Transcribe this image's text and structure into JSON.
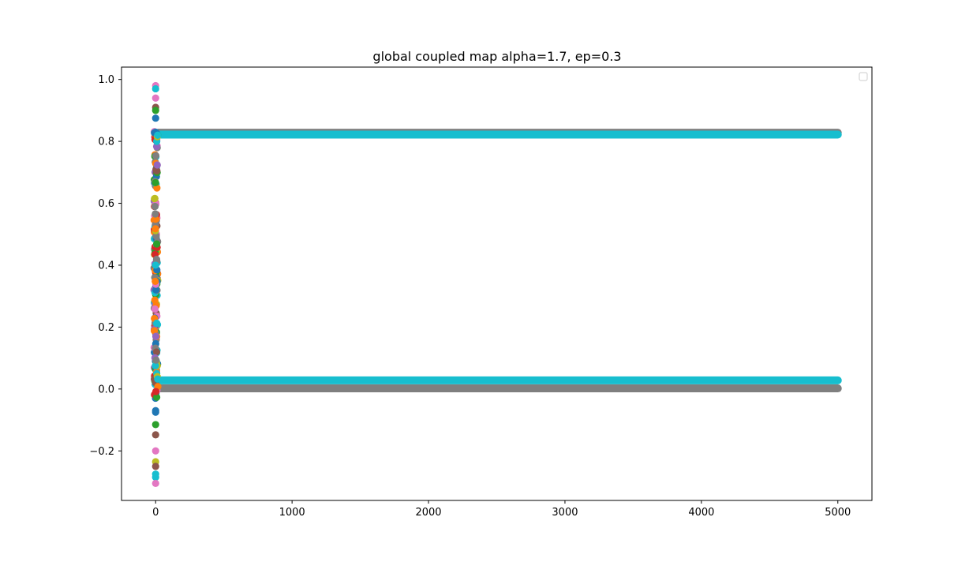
{
  "chart_data": {
    "type": "scatter",
    "title": "global coupled map alpha=1.7, ep=0.3",
    "xlabel": "",
    "ylabel": "",
    "xlim": [
      -250,
      5250
    ],
    "ylim": [
      -0.36,
      1.04
    ],
    "xticks": [
      0,
      1000,
      2000,
      3000,
      4000,
      5000
    ],
    "xtick_labels": [
      "0",
      "1000",
      "2000",
      "3000",
      "4000",
      "5000"
    ],
    "yticks": [
      -0.2,
      0.0,
      0.2,
      0.4,
      0.6,
      0.8,
      1.0
    ],
    "ytick_labels": [
      "−0.2",
      "0.0",
      "0.2",
      "0.4",
      "0.6",
      "0.8",
      "1.0"
    ],
    "grid": false,
    "legend": {
      "placement": "top-right",
      "entries": []
    },
    "colors": [
      "#1f77b4",
      "#ff7f0e",
      "#2ca02c",
      "#d62728",
      "#9467bd",
      "#8c564b",
      "#e377c2",
      "#7f7f7f",
      "#bcbd22",
      "#17becf"
    ],
    "transient": {
      "x_range": [
        0,
        20
      ],
      "x_values": [
        0,
        5
      ],
      "notable_points": [
        {
          "x": 0,
          "y": 0.98,
          "color": "#e377c2"
        },
        {
          "x": 0,
          "y": 0.97,
          "color": "#17becf"
        },
        {
          "x": 0,
          "y": 0.94,
          "color": "#e377c2"
        },
        {
          "x": 0,
          "y": 0.91,
          "color": "#8c564b"
        },
        {
          "x": 0,
          "y": 0.9,
          "color": "#2ca02c"
        },
        {
          "x": 0,
          "y": 0.875,
          "color": "#1f77b4"
        },
        {
          "x": 0,
          "y": -0.07,
          "color": "#1f77b4"
        },
        {
          "x": 0,
          "y": -0.075,
          "color": "#1f77b4"
        },
        {
          "x": 0,
          "y": -0.115,
          "color": "#2ca02c"
        },
        {
          "x": 0,
          "y": -0.148,
          "color": "#8c564b"
        },
        {
          "x": 0,
          "y": -0.2,
          "color": "#e377c2"
        },
        {
          "x": 0,
          "y": -0.235,
          "color": "#bcbd22"
        },
        {
          "x": 0,
          "y": -0.25,
          "color": "#8c564b"
        },
        {
          "x": 0,
          "y": -0.275,
          "color": "#17becf"
        },
        {
          "x": 0,
          "y": -0.285,
          "color": "#17becf"
        },
        {
          "x": 0,
          "y": -0.305,
          "color": "#e377c2"
        }
      ]
    },
    "series": [
      {
        "x_range": [
          20,
          5000
        ],
        "y": 0.828,
        "color": "#7f7f7f"
      },
      {
        "x_range": [
          20,
          5000
        ],
        "y": 0.822,
        "color": "#17becf"
      },
      {
        "x_range": [
          20,
          5000
        ],
        "y": 0.002,
        "color": "#7f7f7f"
      },
      {
        "x_range": [
          20,
          5000
        ],
        "y": 0.028,
        "color": "#17becf"
      }
    ]
  }
}
